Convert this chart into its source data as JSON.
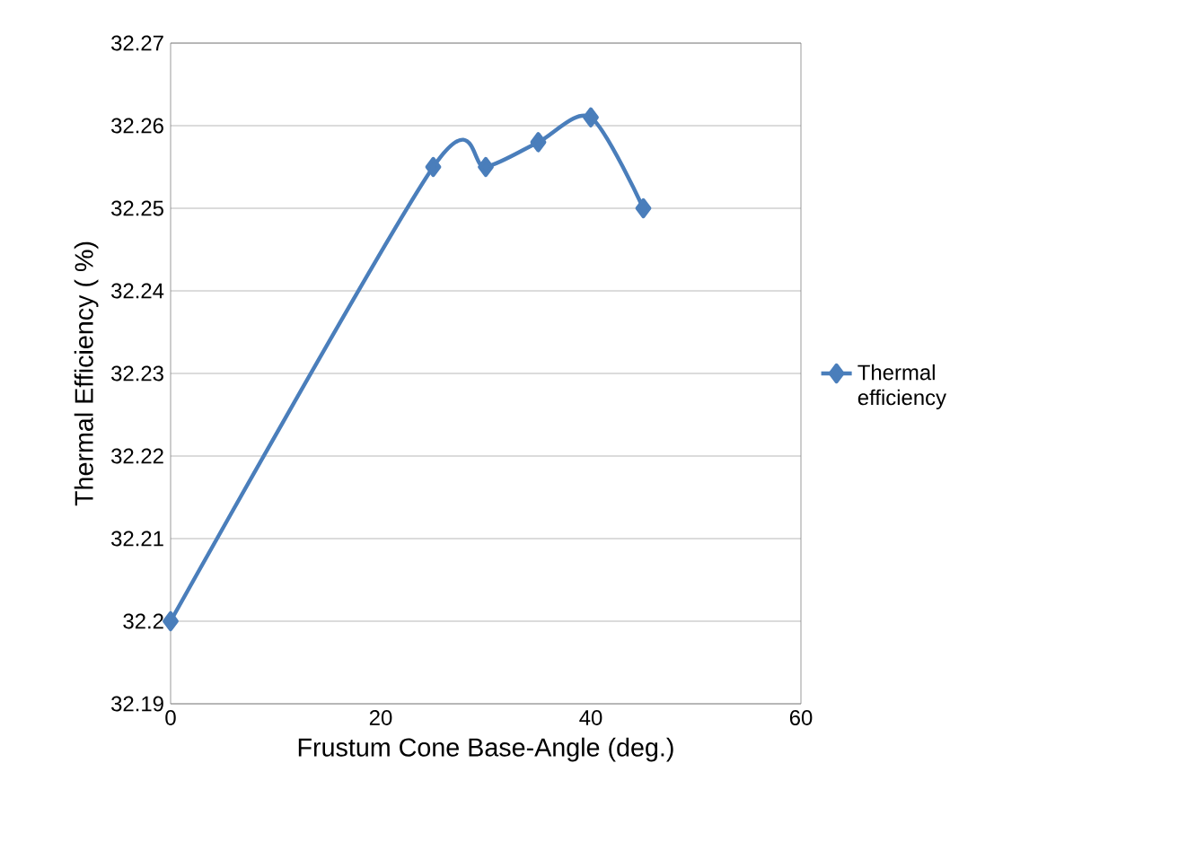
{
  "chart_data": {
    "type": "line",
    "xlabel": "Frustum Cone Base-Angle (deg.)",
    "ylabel": "Thermal Efficiency ( %)",
    "x": [
      0,
      25,
      30,
      35,
      40,
      45
    ],
    "series": [
      {
        "name": "Thermal efficiency",
        "color": "#4a7ebb",
        "values": [
          32.2,
          32.255,
          32.255,
          32.258,
          32.261,
          32.25
        ]
      }
    ],
    "xlim": [
      0,
      60
    ],
    "ylim": [
      32.19,
      32.27
    ],
    "xticks": [
      0,
      20,
      40,
      60
    ],
    "yticks": [
      32.19,
      32.2,
      32.21,
      32.22,
      32.23,
      32.24,
      32.25,
      32.26,
      32.27
    ],
    "grid": "y",
    "legend": "right",
    "marker": "diamond",
    "line_style": "solid"
  }
}
